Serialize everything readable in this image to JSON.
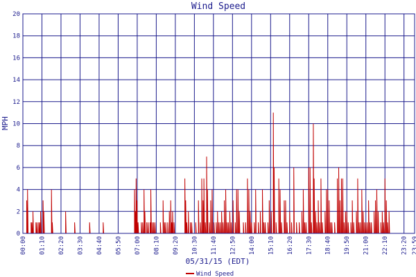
{
  "chart_data": {
    "type": "line",
    "title": "Wind Speed",
    "xlabel": "05/31/15 (EDT)",
    "ylabel": "MPH",
    "ylim": [
      0,
      20
    ],
    "yticks": [
      0,
      2,
      4,
      6,
      8,
      10,
      12,
      14,
      16,
      18,
      20
    ],
    "xlim": [
      "00:00",
      "23:59"
    ],
    "xticks": [
      "00:00",
      "01:10",
      "02:20",
      "03:30",
      "04:40",
      "05:50",
      "07:00",
      "08:10",
      "09:20",
      "10:30",
      "11:40",
      "12:50",
      "14:00",
      "15:10",
      "16:20",
      "17:30",
      "18:40",
      "19:50",
      "21:00",
      "22:10",
      "23:20",
      "23:59"
    ],
    "grid": true,
    "colors": {
      "series": "#c00000",
      "grid": "#1a1a8c",
      "text": "#1a1a8c"
    },
    "legend": {
      "position": "bottom-left"
    },
    "series": [
      {
        "name": "Wind Speed",
        "points": [
          [
            "00:14",
            3
          ],
          [
            "00:17",
            4
          ],
          [
            "00:30",
            1
          ],
          [
            "00:33",
            1
          ],
          [
            "00:37",
            2
          ],
          [
            "00:48",
            1
          ],
          [
            "00:52",
            1
          ],
          [
            "00:58",
            1
          ],
          [
            "01:02",
            1
          ],
          [
            "01:05",
            2
          ],
          [
            "01:14",
            3
          ],
          [
            "01:17",
            2
          ],
          [
            "01:45",
            4
          ],
          [
            "01:48",
            1
          ],
          [
            "02:37",
            2
          ],
          [
            "03:10",
            1
          ],
          [
            "04:05",
            1
          ],
          [
            "04:55",
            1
          ],
          [
            "06:50",
            4
          ],
          [
            "06:53",
            2
          ],
          [
            "06:56",
            5
          ],
          [
            "06:59",
            3
          ],
          [
            "07:03",
            1
          ],
          [
            "07:15",
            1
          ],
          [
            "07:20",
            1
          ],
          [
            "07:25",
            4
          ],
          [
            "07:28",
            2
          ],
          [
            "07:35",
            1
          ],
          [
            "07:40",
            1
          ],
          [
            "07:47",
            1
          ],
          [
            "07:50",
            4
          ],
          [
            "07:55",
            1
          ],
          [
            "08:00",
            1
          ],
          [
            "08:05",
            1
          ],
          [
            "08:25",
            1
          ],
          [
            "08:35",
            3
          ],
          [
            "08:40",
            1
          ],
          [
            "08:45",
            1
          ],
          [
            "08:52",
            1
          ],
          [
            "08:58",
            2
          ],
          [
            "09:03",
            3
          ],
          [
            "09:07",
            1
          ],
          [
            "09:10",
            2
          ],
          [
            "09:15",
            1
          ],
          [
            "09:55",
            5
          ],
          [
            "09:58",
            3
          ],
          [
            "10:02",
            1
          ],
          [
            "10:08",
            2
          ],
          [
            "10:15",
            1
          ],
          [
            "10:20",
            1
          ],
          [
            "10:35",
            1
          ],
          [
            "10:45",
            3
          ],
          [
            "10:52",
            1
          ],
          [
            "10:57",
            5
          ],
          [
            "11:02",
            3
          ],
          [
            "11:05",
            5
          ],
          [
            "11:10",
            1
          ],
          [
            "11:15",
            7
          ],
          [
            "11:18",
            4
          ],
          [
            "11:25",
            1
          ],
          [
            "11:30",
            3
          ],
          [
            "11:35",
            4
          ],
          [
            "11:42",
            1
          ],
          [
            "11:50",
            1
          ],
          [
            "11:55",
            2
          ],
          [
            "12:00",
            1
          ],
          [
            "12:05",
            1
          ],
          [
            "12:10",
            2
          ],
          [
            "12:15",
            1
          ],
          [
            "12:20",
            3
          ],
          [
            "12:25",
            4
          ],
          [
            "12:30",
            1
          ],
          [
            "12:35",
            1
          ],
          [
            "12:40",
            2
          ],
          [
            "12:45",
            1
          ],
          [
            "12:52",
            3
          ],
          [
            "13:00",
            1
          ],
          [
            "13:05",
            4
          ],
          [
            "13:10",
            4
          ],
          [
            "13:15",
            2
          ],
          [
            "13:30",
            1
          ],
          [
            "13:38",
            1
          ],
          [
            "13:45",
            5
          ],
          [
            "13:50",
            4
          ],
          [
            "13:55",
            2
          ],
          [
            "14:00",
            1
          ],
          [
            "14:10",
            1
          ],
          [
            "14:15",
            4
          ],
          [
            "14:25",
            1
          ],
          [
            "14:32",
            2
          ],
          [
            "14:40",
            4
          ],
          [
            "14:45",
            1
          ],
          [
            "14:50",
            1
          ],
          [
            "15:00",
            1
          ],
          [
            "15:05",
            3
          ],
          [
            "15:12",
            2
          ],
          [
            "15:20",
            11
          ],
          [
            "15:23",
            6
          ],
          [
            "15:30",
            1
          ],
          [
            "15:40",
            5
          ],
          [
            "15:45",
            4
          ],
          [
            "15:50",
            1
          ],
          [
            "16:00",
            3
          ],
          [
            "16:05",
            3
          ],
          [
            "16:10",
            1
          ],
          [
            "16:20",
            2
          ],
          [
            "16:27",
            1
          ],
          [
            "16:35",
            6
          ],
          [
            "16:45",
            1
          ],
          [
            "16:55",
            1
          ],
          [
            "17:05",
            2
          ],
          [
            "17:10",
            4
          ],
          [
            "17:15",
            1
          ],
          [
            "17:20",
            1
          ],
          [
            "17:30",
            6
          ],
          [
            "17:35",
            6
          ],
          [
            "17:40",
            1
          ],
          [
            "17:47",
            10
          ],
          [
            "17:50",
            5
          ],
          [
            "17:55",
            2
          ],
          [
            "18:00",
            1
          ],
          [
            "18:05",
            3
          ],
          [
            "18:10",
            1
          ],
          [
            "18:15",
            5
          ],
          [
            "18:20",
            1
          ],
          [
            "18:30",
            2
          ],
          [
            "18:35",
            4
          ],
          [
            "18:40",
            4
          ],
          [
            "18:45",
            3
          ],
          [
            "18:50",
            1
          ],
          [
            "18:55",
            1
          ],
          [
            "19:05",
            1
          ],
          [
            "19:15",
            5
          ],
          [
            "19:20",
            6
          ],
          [
            "19:25",
            3
          ],
          [
            "19:30",
            5
          ],
          [
            "19:35",
            5
          ],
          [
            "19:40",
            1
          ],
          [
            "19:45",
            2
          ],
          [
            "19:50",
            2
          ],
          [
            "19:55",
            1
          ],
          [
            "20:05",
            1
          ],
          [
            "20:10",
            3
          ],
          [
            "20:15",
            1
          ],
          [
            "20:25",
            2
          ],
          [
            "20:30",
            5
          ],
          [
            "20:35",
            1
          ],
          [
            "20:40",
            1
          ],
          [
            "20:45",
            4
          ],
          [
            "20:50",
            2
          ],
          [
            "20:55",
            1
          ],
          [
            "21:00",
            1
          ],
          [
            "21:05",
            1
          ],
          [
            "21:10",
            3
          ],
          [
            "21:15",
            1
          ],
          [
            "21:20",
            1
          ],
          [
            "21:30",
            2
          ],
          [
            "21:35",
            3
          ],
          [
            "21:40",
            4
          ],
          [
            "21:45",
            2
          ],
          [
            "21:55",
            1
          ],
          [
            "22:00",
            2
          ],
          [
            "22:05",
            1
          ],
          [
            "22:10",
            5
          ],
          [
            "22:15",
            3
          ],
          [
            "22:20",
            1
          ],
          [
            "22:25",
            2
          ]
        ]
      }
    ]
  }
}
